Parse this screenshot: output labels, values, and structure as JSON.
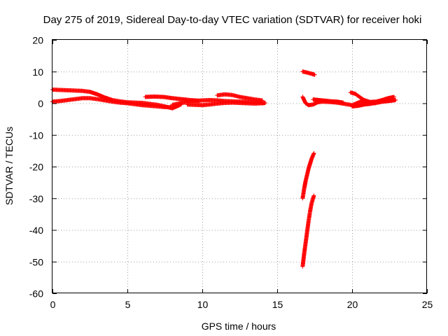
{
  "chart_data": {
    "type": "scatter",
    "title": "Day 275 of 2019, Sidereal Day-to-day VTEC variation (SDTVAR) for receiver hoki",
    "xlabel": "GPS time / hours",
    "ylabel": "SDTVAR / TECUs",
    "xlim": [
      0,
      25
    ],
    "ylim": [
      -60,
      20
    ],
    "xticks": [
      "0",
      "5",
      "10",
      "15",
      "20",
      "25"
    ],
    "yticks": [
      "-60",
      "-50",
      "-40",
      "-30",
      "-20",
      "-10",
      "0",
      "10",
      "20"
    ],
    "grid": true,
    "marker": "+",
    "colors": {
      "series": "#ff0000",
      "axis": "#000000",
      "grid": "#a0a0a0"
    },
    "series": [
      {
        "name": "SDTVAR",
        "segments": [
          [
            [
              0.0,
              4.3
            ],
            [
              0.5,
              4.2
            ],
            [
              1.0,
              4.1
            ],
            [
              1.5,
              4.0
            ],
            [
              2.0,
              3.9
            ],
            [
              2.5,
              3.6
            ],
            [
              3.0,
              2.8
            ],
            [
              3.5,
              1.8
            ],
            [
              4.0,
              1.0
            ],
            [
              4.5,
              0.6
            ],
            [
              5.0,
              0.3
            ],
            [
              5.5,
              0.2
            ],
            [
              6.0,
              0.1
            ],
            [
              6.5,
              -0.2
            ],
            [
              7.0,
              -0.5
            ],
            [
              7.5,
              -1.0
            ],
            [
              8.0,
              -1.6
            ],
            [
              8.3,
              -1.0
            ],
            [
              8.6,
              -0.3
            ]
          ],
          [
            [
              0.0,
              0.5
            ],
            [
              0.5,
              0.7
            ],
            [
              1.0,
              1.0
            ],
            [
              1.5,
              1.3
            ],
            [
              2.0,
              1.6
            ],
            [
              2.5,
              1.6
            ],
            [
              3.0,
              1.3
            ],
            [
              3.5,
              0.9
            ],
            [
              4.0,
              0.5
            ],
            [
              4.5,
              0.2
            ],
            [
              5.0,
              0.0
            ],
            [
              5.5,
              -0.3
            ],
            [
              6.0,
              -0.6
            ],
            [
              6.5,
              -0.8
            ],
            [
              7.0,
              -1.0
            ],
            [
              7.5,
              -1.2
            ],
            [
              8.0,
              -1.3
            ]
          ],
          [
            [
              6.2,
              2.0
            ],
            [
              6.8,
              2.1
            ],
            [
              7.4,
              2.0
            ],
            [
              8.0,
              1.6
            ],
            [
              8.6,
              1.3
            ],
            [
              9.2,
              1.0
            ],
            [
              9.8,
              0.8
            ]
          ],
          [
            [
              8.0,
              -0.5
            ],
            [
              8.5,
              0.0
            ],
            [
              9.0,
              0.4
            ],
            [
              9.5,
              0.7
            ],
            [
              10.0,
              0.9
            ],
            [
              10.5,
              1.0
            ],
            [
              11.0,
              0.9
            ],
            [
              11.5,
              0.7
            ],
            [
              12.0,
              0.6
            ],
            [
              12.5,
              0.5
            ],
            [
              13.0,
              0.4
            ],
            [
              13.5,
              0.3
            ],
            [
              14.0,
              0.2
            ]
          ],
          [
            [
              9.0,
              -0.4
            ],
            [
              9.5,
              -0.5
            ],
            [
              10.0,
              -0.6
            ],
            [
              10.5,
              -0.4
            ],
            [
              11.0,
              -0.1
            ],
            [
              11.5,
              0.1
            ],
            [
              12.0,
              0.2
            ],
            [
              12.5,
              0.1
            ],
            [
              13.0,
              0.0
            ],
            [
              13.5,
              -0.1
            ],
            [
              14.0,
              0.0
            ],
            [
              14.2,
              0.1
            ]
          ],
          [
            [
              11.0,
              2.5
            ],
            [
              11.5,
              2.8
            ],
            [
              12.0,
              2.6
            ],
            [
              12.5,
              2.0
            ],
            [
              13.0,
              1.6
            ],
            [
              13.5,
              1.2
            ],
            [
              14.0,
              0.9
            ]
          ],
          [
            [
              16.7,
              10.0
            ],
            [
              17.0,
              9.7
            ],
            [
              17.3,
              9.3
            ],
            [
              17.5,
              9.0
            ]
          ],
          [
            [
              16.7,
              2.0
            ],
            [
              16.9,
              0.0
            ],
            [
              17.1,
              -0.6
            ],
            [
              17.4,
              -0.4
            ],
            [
              17.7,
              0.3
            ],
            [
              18.0,
              0.5
            ],
            [
              18.5,
              0.4
            ],
            [
              19.0,
              0.2
            ],
            [
              19.5,
              -0.2
            ],
            [
              20.0,
              -0.6
            ],
            [
              20.3,
              0.0
            ],
            [
              20.6,
              0.6
            ],
            [
              21.0,
              0.3
            ],
            [
              21.5,
              0.0
            ],
            [
              22.0,
              0.5
            ],
            [
              22.5,
              0.9
            ],
            [
              22.9,
              1.0
            ]
          ],
          [
            [
              17.4,
              1.2
            ],
            [
              17.8,
              1.0
            ],
            [
              18.2,
              0.8
            ],
            [
              18.6,
              0.6
            ],
            [
              19.0,
              0.5
            ],
            [
              19.4,
              0.2
            ]
          ],
          [
            [
              19.9,
              3.4
            ],
            [
              20.2,
              3.0
            ],
            [
              20.5,
              2.0
            ],
            [
              20.8,
              1.0
            ],
            [
              21.2,
              0.4
            ],
            [
              21.6,
              0.5
            ],
            [
              22.0,
              1.0
            ],
            [
              22.4,
              1.6
            ],
            [
              22.8,
              2.0
            ]
          ],
          [
            [
              20.0,
              -1.0
            ],
            [
              20.4,
              -0.8
            ],
            [
              20.8,
              -0.4
            ],
            [
              21.2,
              -0.2
            ],
            [
              21.6,
              0.2
            ],
            [
              22.0,
              0.5
            ],
            [
              22.4,
              0.7
            ],
            [
              22.8,
              0.9
            ]
          ],
          [
            [
              16.7,
              -30.0
            ],
            [
              16.8,
              -27.0
            ],
            [
              16.9,
              -24.5
            ],
            [
              17.0,
              -22.5
            ],
            [
              17.1,
              -20.5
            ],
            [
              17.2,
              -19.0
            ],
            [
              17.3,
              -17.5
            ],
            [
              17.45,
              -15.8
            ]
          ],
          [
            [
              16.7,
              -51.5
            ],
            [
              16.8,
              -47.5
            ],
            [
              16.9,
              -44.0
            ],
            [
              17.0,
              -40.5
            ],
            [
              17.1,
              -37.0
            ],
            [
              17.2,
              -34.0
            ],
            [
              17.3,
              -31.5
            ],
            [
              17.45,
              -29.2
            ]
          ]
        ]
      }
    ]
  }
}
